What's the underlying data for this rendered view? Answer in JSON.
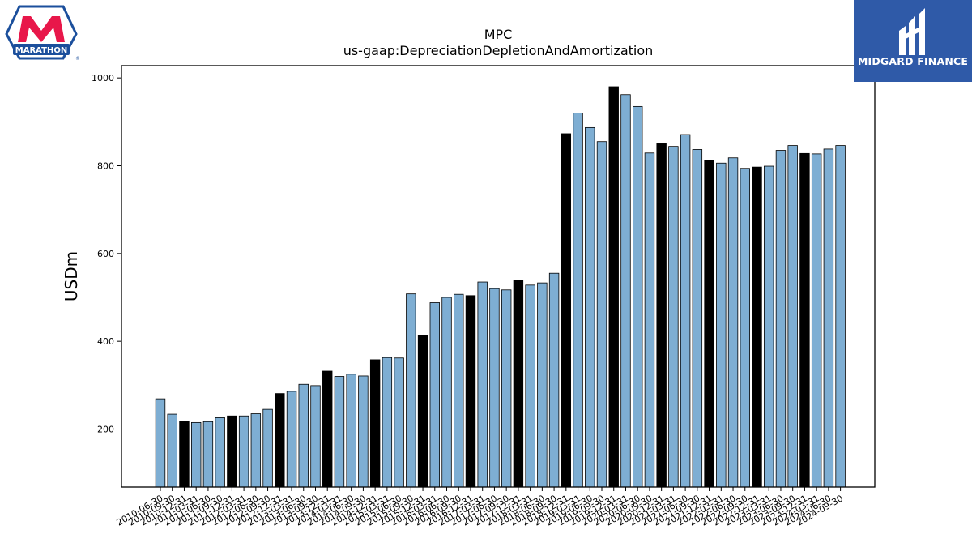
{
  "logos": {
    "left_text": "MARATHON",
    "right_text": "MIDGARD FINANCE"
  },
  "colors": {
    "bar_default": "#7eaed3",
    "bar_highlight": "#000000",
    "axis": "#000000",
    "marathon_red": "#e8174a",
    "marathon_blue": "#1b4f9c",
    "midgard_bg": "#2f5aa8"
  },
  "chart_data": {
    "type": "bar",
    "title": "MPC",
    "subtitle": "us-gaap:DepreciationDepletionAndAmortization",
    "xlabel": "",
    "ylabel": "USDm",
    "ylim": [
      68,
      1028
    ],
    "yticks": [
      200,
      400,
      600,
      800,
      1000
    ],
    "grid": false,
    "legend": "none",
    "categories": [
      "2010-06-30",
      "2010-09-30",
      "2010-12-31",
      "2011-03-31",
      "2011-06-30",
      "2011-09-30",
      "2011-12-31",
      "2012-03-31",
      "2012-06-30",
      "2012-09-30",
      "2012-12-31",
      "2013-03-31",
      "2013-06-30",
      "2013-09-30",
      "2013-12-31",
      "2014-03-31",
      "2014-06-30",
      "2014-09-30",
      "2014-12-31",
      "2015-03-31",
      "2015-06-30",
      "2015-09-30",
      "2015-12-31",
      "2016-03-31",
      "2016-06-30",
      "2016-09-30",
      "2016-12-31",
      "2017-03-31",
      "2017-06-30",
      "2017-09-30",
      "2017-12-31",
      "2018-03-31",
      "2018-06-30",
      "2018-09-30",
      "2018-12-31",
      "2019-03-31",
      "2019-06-30",
      "2019-09-30",
      "2019-12-31",
      "2020-03-31",
      "2020-06-30",
      "2020-09-30",
      "2020-12-31",
      "2021-03-31",
      "2021-06-30",
      "2021-09-30",
      "2021-12-31",
      "2022-03-31",
      "2022-06-30",
      "2022-09-30",
      "2022-12-31",
      "2023-03-31",
      "2023-06-30",
      "2023-09-30",
      "2023-12-31",
      "2024-03-31",
      "2024-06-30",
      "2024-09-30"
    ],
    "values": [
      269,
      234,
      217,
      215,
      217,
      226,
      230,
      230,
      235,
      245,
      281,
      286,
      302,
      299,
      332,
      320,
      325,
      321,
      358,
      363,
      362,
      508,
      413,
      488,
      500,
      507,
      504,
      535,
      520,
      517,
      539,
      528,
      533,
      555,
      873,
      920,
      887,
      855,
      980,
      962,
      935,
      829,
      850,
      844,
      871,
      837,
      812,
      806,
      818,
      794,
      797,
      799,
      835,
      846,
      828,
      827,
      838,
      846
    ],
    "highlight": [
      false,
      false,
      true,
      false,
      false,
      false,
      true,
      false,
      false,
      false,
      true,
      false,
      false,
      false,
      true,
      false,
      false,
      false,
      true,
      false,
      false,
      false,
      true,
      false,
      false,
      false,
      true,
      false,
      false,
      false,
      true,
      false,
      false,
      false,
      true,
      false,
      false,
      false,
      true,
      false,
      false,
      false,
      true,
      false,
      false,
      false,
      true,
      false,
      false,
      false,
      true,
      false,
      false,
      false,
      true,
      false,
      false,
      false
    ]
  }
}
